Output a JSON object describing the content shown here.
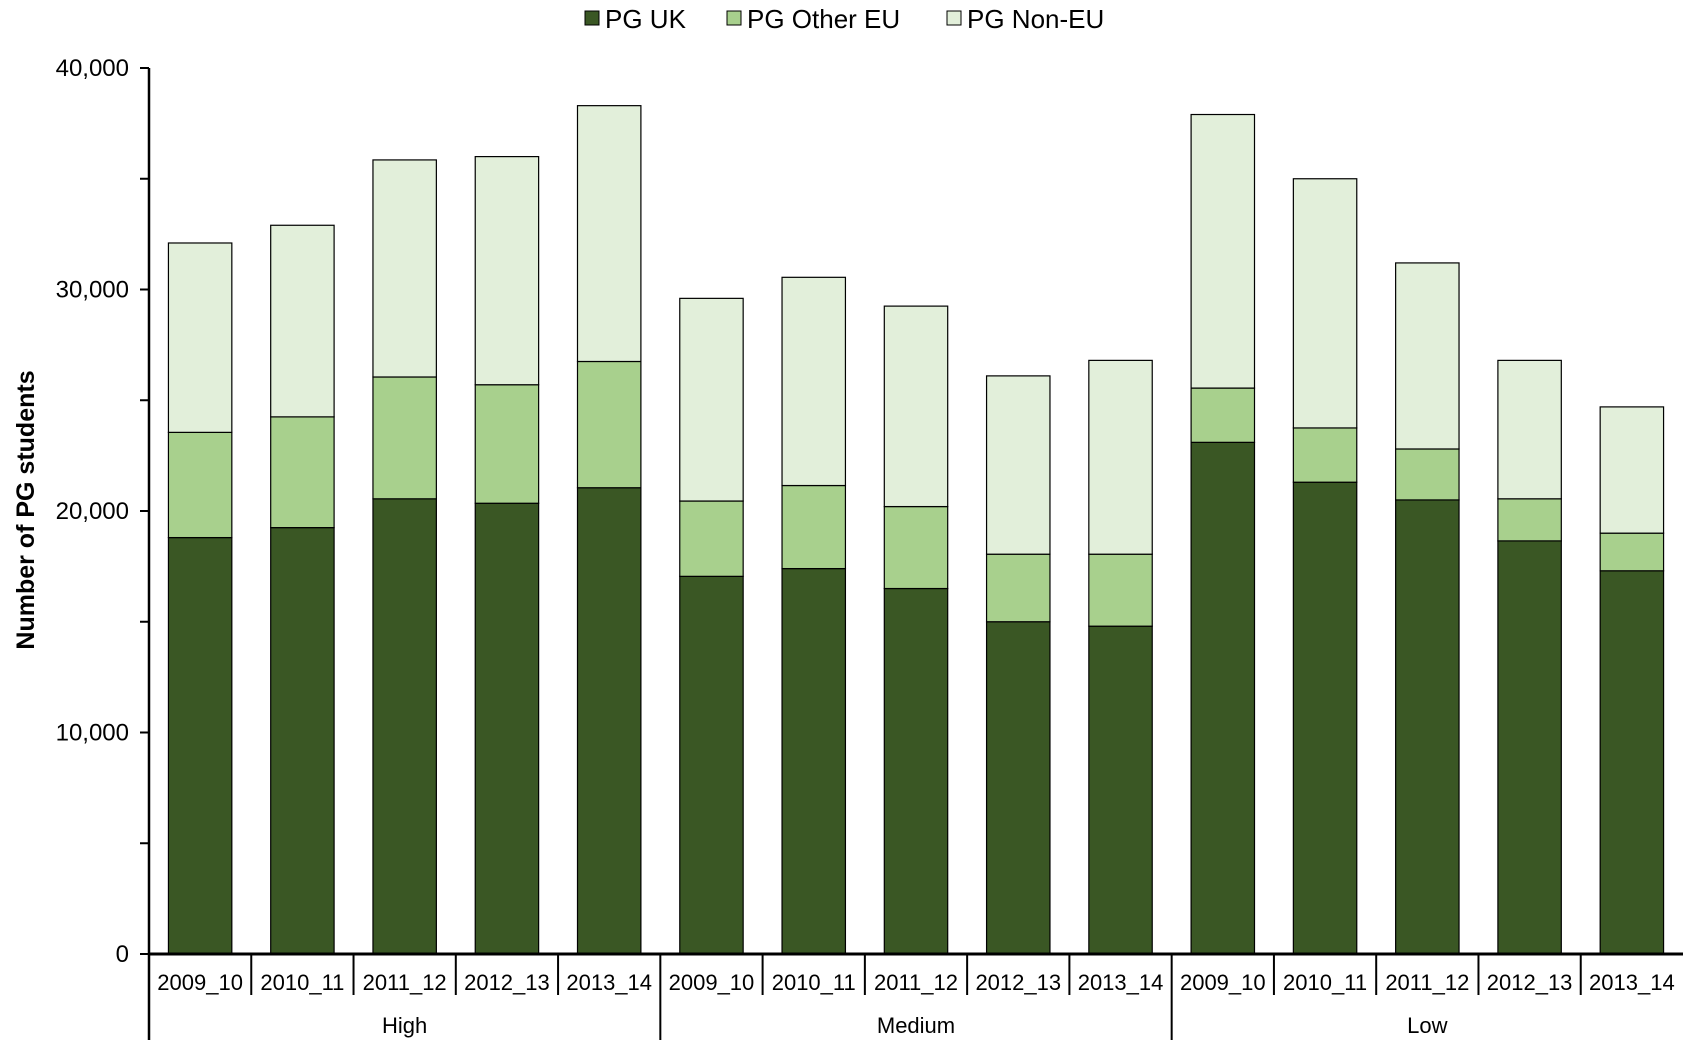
{
  "chart_data": {
    "type": "bar",
    "stacked": true,
    "ylabel": "Number of PG students",
    "ylim": [
      0,
      40000
    ],
    "yticks": [
      0,
      10000,
      20000,
      30000,
      40000
    ],
    "ytick_labels": [
      "0",
      "10,000",
      "20,000",
      "30,000",
      "40,000"
    ],
    "legend_position": "top-center",
    "groups": [
      {
        "label": "High",
        "categories": [
          "2009_10",
          "2010_11",
          "2011_12",
          "2012_13",
          "2013_14"
        ]
      },
      {
        "label": "Medium",
        "categories": [
          "2009_10",
          "2010_11",
          "2011_12",
          "2012_13",
          "2013_14"
        ]
      },
      {
        "label": "Low",
        "categories": [
          "2009_10",
          "2010_11",
          "2011_12",
          "2012_13",
          "2013_14"
        ]
      }
    ],
    "series": [
      {
        "name": "PG UK",
        "color": "#3a5724",
        "values": [
          18800,
          19250,
          20550,
          20350,
          21050,
          17050,
          17400,
          16500,
          15000,
          14800,
          23100,
          21300,
          20500,
          18650,
          17300
        ]
      },
      {
        "name": "PG Other EU",
        "color": "#a8d08d",
        "values": [
          4750,
          5000,
          5500,
          5350,
          5700,
          3400,
          3750,
          3700,
          3050,
          3250,
          2450,
          2450,
          2300,
          1900,
          1700
        ]
      },
      {
        "name": "PG Non-EU",
        "color": "#e2efda",
        "values": [
          8550,
          8650,
          9800,
          10300,
          11550,
          9150,
          9400,
          9050,
          8050,
          8750,
          12350,
          11250,
          8400,
          6250,
          5700
        ]
      }
    ]
  }
}
